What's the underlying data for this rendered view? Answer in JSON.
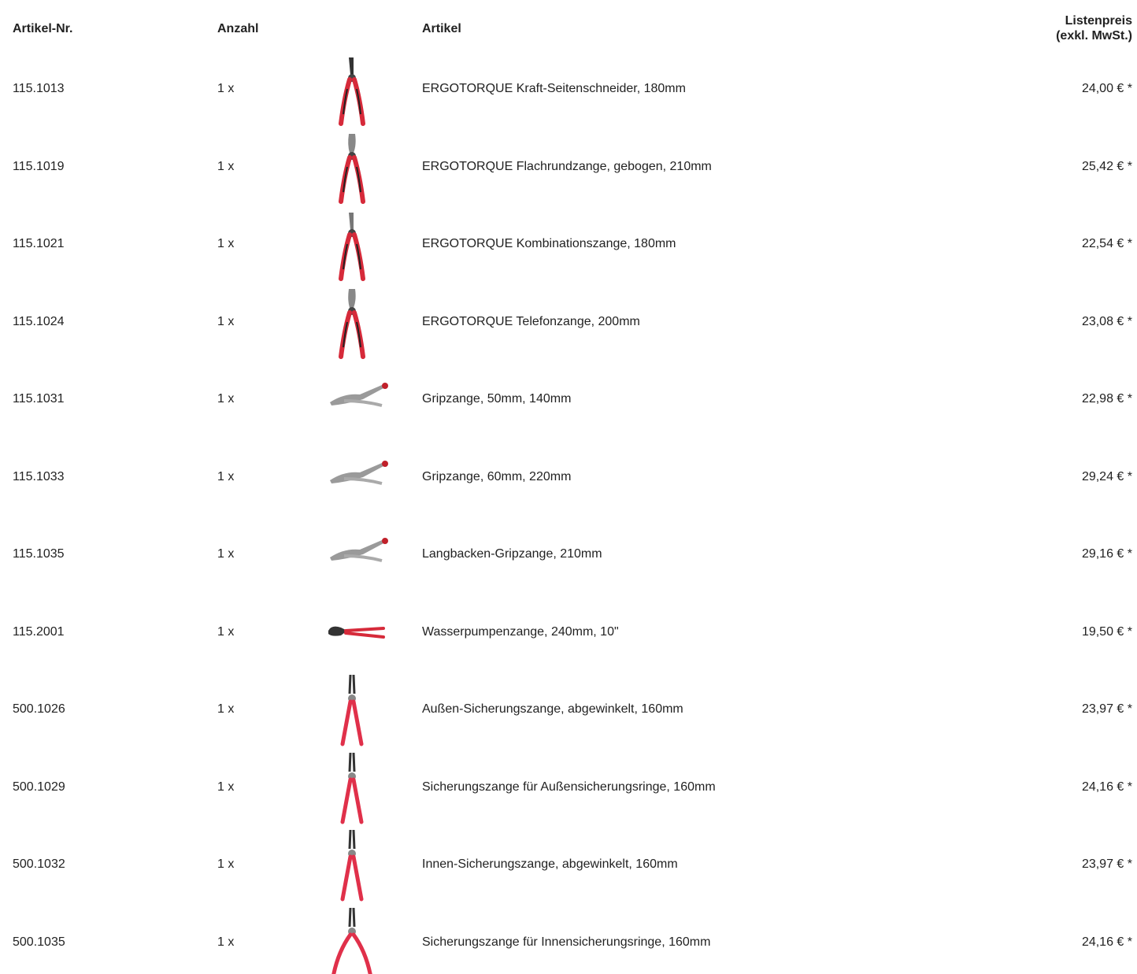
{
  "header": {
    "article_no": "Artikel-Nr.",
    "quantity": "Anzahl",
    "article": "Artikel",
    "price": [
      "Listenpreis",
      "(exkl. MwSt.)"
    ]
  },
  "table": {
    "rows": [
      [
        "115.1013",
        "1 x",
        "ERGOTORQUE Kraft-Seitenschneider, 180mm",
        "24,00 € *"
      ],
      [
        "115.1019",
        "1 x",
        "ERGOTORQUE Flachrundzange, gebogen, 210mm",
        "25,42 € *"
      ],
      [
        "115.1021",
        "1 x",
        "ERGOTORQUE Kombinationszange, 180mm",
        "22,54 € *"
      ],
      [
        "115.1024",
        "1 x",
        "ERGOTORQUE Telefonzange, 200mm",
        "23,08 € *"
      ],
      [
        "115.1031",
        "1 x",
        "Gripzange, 50mm, 140mm",
        "22,98 € *"
      ],
      [
        "115.1033",
        "1 x",
        "Gripzange, 60mm, 220mm",
        "29,24 € *"
      ],
      [
        "115.1035",
        "1 x",
        "Langbacken-Gripzange, 210mm",
        "29,16 € *"
      ],
      [
        "115.2001",
        "1 x",
        "Wasserpumpenzange, 240mm, 10\"",
        "19,50 € *"
      ],
      [
        "500.1026",
        "1 x",
        "Außen-Sicherungszange, abgewinkelt, 160mm",
        "23,97 € *"
      ],
      [
        "500.1029",
        "1 x",
        "Sicherungszange für Außensicherungsringe, 160mm",
        "24,16 € *"
      ],
      [
        "500.1032",
        "1 x",
        "Innen-Sicherungszange, abgewinkelt, 160mm",
        "23,97 € *"
      ],
      [
        "500.1035",
        "1 x",
        "Sicherungszange für Innensicherungsringe, 160mm",
        "24,16 € *"
      ]
    ]
  }
}
